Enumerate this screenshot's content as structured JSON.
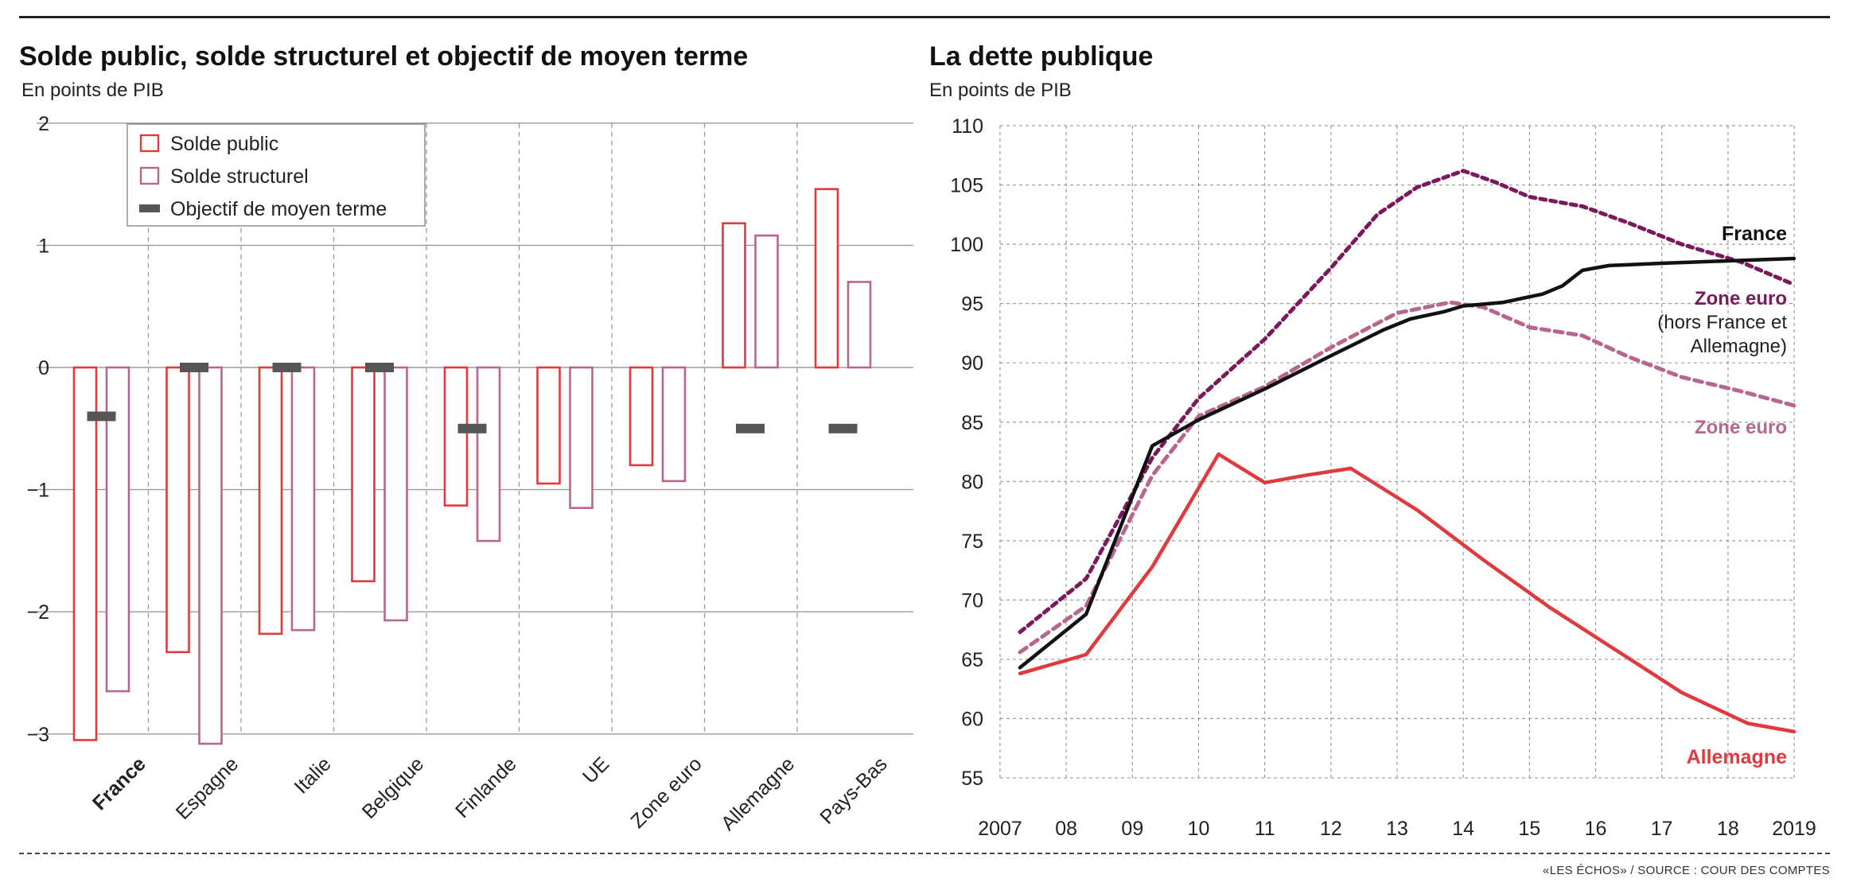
{
  "source_note": "«LES ÉCHOS» / SOURCE : COUR DES COMPTES",
  "colors": {
    "red": "#e03a3e",
    "pink": "#b7668f",
    "goal": "#555555",
    "france": "#111111",
    "zone_hors": "#7a1a5c",
    "zone_euro": "#b7668f",
    "allemagne": "#e03a3e",
    "grid": "#9a9a9a"
  },
  "chart_data": [
    {
      "type": "bar",
      "title": "Solde public, solde structurel et objectif de moyen terme",
      "subtitle": "En points de PIB",
      "categories": [
        "France",
        "Espagne",
        "Italie",
        "Belgique",
        "Finlande",
        "UE",
        "Zone euro",
        "Allemagne",
        "Pays-Bas"
      ],
      "ylim": [
        -3,
        2
      ],
      "yticks": [
        2,
        1,
        0,
        -1,
        -2,
        -3
      ],
      "ytick_labels": [
        "2",
        "1",
        "0",
        "−1",
        "−2",
        "−3"
      ],
      "grid": true,
      "legend": {
        "placement": "top-left",
        "entries": [
          "Solde public",
          "Solde structurel",
          "Objectif de moyen terme"
        ]
      },
      "series": [
        {
          "name": "Solde public",
          "style": "outline-red",
          "values": [
            -3.05,
            -2.33,
            -2.18,
            -1.75,
            -1.13,
            -0.95,
            -0.8,
            1.18,
            1.46
          ]
        },
        {
          "name": "Solde structurel",
          "style": "outline-pink",
          "values": [
            -2.65,
            -3.08,
            -2.15,
            -2.07,
            -1.42,
            -1.15,
            -0.93,
            1.08,
            0.7
          ]
        },
        {
          "name": "Objectif de moyen terme",
          "style": "marker",
          "values": [
            -0.4,
            0.0,
            0.0,
            0.0,
            -0.5,
            null,
            null,
            -0.5,
            -0.5
          ]
        }
      ]
    },
    {
      "type": "line",
      "title": "La dette publique",
      "subtitle": "En points de PIB",
      "x": [
        2007,
        2008,
        2009,
        2010,
        2011,
        2012,
        2013,
        2014,
        2015,
        2016,
        2017,
        2018,
        2019
      ],
      "xtick_labels": [
        "2007",
        "08",
        "09",
        "10",
        "11",
        "12",
        "13",
        "14",
        "15",
        "16",
        "17",
        "18",
        "2019"
      ],
      "ylim": [
        55,
        110
      ],
      "yticks": [
        110,
        105,
        100,
        95,
        90,
        85,
        80,
        75,
        70,
        65,
        60,
        55
      ],
      "grid": true,
      "series": [
        {
          "name": "France",
          "label_lines": [
            "France"
          ],
          "style": "solid",
          "points": [
            [
              2007.3,
              64.3
            ],
            [
              2008.3,
              68.8
            ],
            [
              2009.3,
              83.0
            ],
            [
              2010.0,
              85.2
            ],
            [
              2011.0,
              87.8
            ],
            [
              2012.0,
              90.6
            ],
            [
              2012.8,
              92.8
            ],
            [
              2013.2,
              93.7
            ],
            [
              2013.7,
              94.3
            ],
            [
              2014.0,
              94.8
            ],
            [
              2014.6,
              95.1
            ],
            [
              2015.2,
              95.8
            ],
            [
              2015.5,
              96.5
            ],
            [
              2015.8,
              97.8
            ],
            [
              2016.2,
              98.2
            ],
            [
              2017.0,
              98.4
            ],
            [
              2018.0,
              98.6
            ],
            [
              2019.0,
              98.8
            ]
          ]
        },
        {
          "name": "Zone euro (hors France et Allemagne)",
          "label_lines": [
            "Zone euro",
            "(hors France et",
            "Allemagne)"
          ],
          "style": "dotted",
          "points": [
            [
              2007.3,
              67.3
            ],
            [
              2008.3,
              71.8
            ],
            [
              2009.3,
              82.0
            ],
            [
              2010.0,
              87.0
            ],
            [
              2011.0,
              92.0
            ],
            [
              2012.0,
              98.0
            ],
            [
              2012.7,
              102.5
            ],
            [
              2013.3,
              104.8
            ],
            [
              2014.0,
              106.2
            ],
            [
              2014.5,
              105.2
            ],
            [
              2015.0,
              104.0
            ],
            [
              2015.8,
              103.2
            ],
            [
              2016.5,
              101.8
            ],
            [
              2017.3,
              100.0
            ],
            [
              2018.2,
              98.5
            ],
            [
              2019.0,
              96.6
            ]
          ]
        },
        {
          "name": "Zone euro",
          "label_lines": [
            "Zone euro"
          ],
          "style": "dashed",
          "points": [
            [
              2007.3,
              65.6
            ],
            [
              2008.3,
              69.5
            ],
            [
              2009.3,
              80.5
            ],
            [
              2010.0,
              85.5
            ],
            [
              2011.0,
              88.0
            ],
            [
              2012.0,
              91.3
            ],
            [
              2013.0,
              94.2
            ],
            [
              2013.8,
              95.1
            ],
            [
              2014.3,
              94.7
            ],
            [
              2015.0,
              93.0
            ],
            [
              2015.8,
              92.3
            ],
            [
              2016.5,
              90.5
            ],
            [
              2017.3,
              88.8
            ],
            [
              2018.2,
              87.6
            ],
            [
              2019.0,
              86.4
            ]
          ]
        },
        {
          "name": "Allemagne",
          "label_lines": [
            "Allemagne"
          ],
          "style": "solid",
          "points": [
            [
              2007.3,
              63.8
            ],
            [
              2008.3,
              65.4
            ],
            [
              2009.3,
              72.8
            ],
            [
              2010.3,
              82.3
            ],
            [
              2011.0,
              79.9
            ],
            [
              2011.6,
              80.5
            ],
            [
              2012.3,
              81.1
            ],
            [
              2013.3,
              77.6
            ],
            [
              2014.3,
              73.4
            ],
            [
              2015.3,
              69.4
            ],
            [
              2016.3,
              65.8
            ],
            [
              2017.3,
              62.2
            ],
            [
              2018.3,
              59.6
            ],
            [
              2019.0,
              58.9
            ]
          ]
        }
      ]
    }
  ]
}
